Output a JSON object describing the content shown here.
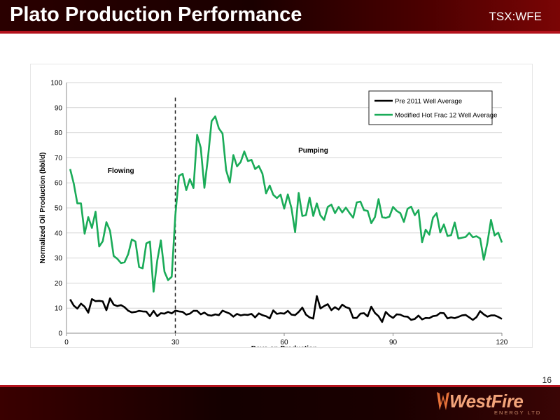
{
  "header": {
    "title": "Plato Production Performance",
    "ticker": "TSX:WFE"
  },
  "page_number": "16",
  "logo": {
    "name": "WestFire",
    "subtitle": "ENERGY LTD"
  },
  "colors": {
    "series_black": "#000000",
    "series_green": "#1aab58",
    "header_accent": "#b3121c"
  },
  "chart_data": {
    "type": "line",
    "title": "",
    "xlabel": "Days on Production",
    "ylabel": "Normalized Oil Production (bbl/d)",
    "xlim": [
      0,
      120
    ],
    "ylim": [
      0,
      100
    ],
    "xticks": [
      0,
      30,
      60,
      90,
      120
    ],
    "yticks": [
      0,
      10,
      20,
      30,
      40,
      50,
      60,
      70,
      80,
      90,
      100
    ],
    "grid": "horizontal",
    "legend_position": "top-right",
    "annotations": [
      {
        "text": "Flowing",
        "x": 15,
        "y": 64
      },
      {
        "text": "Pumping",
        "x": 68,
        "y": 72
      }
    ],
    "divider_day": 30,
    "x": [
      1,
      2,
      3,
      4,
      5,
      6,
      7,
      8,
      9,
      10,
      11,
      12,
      13,
      14,
      15,
      16,
      17,
      18,
      19,
      20,
      21,
      22,
      23,
      24,
      25,
      26,
      27,
      28,
      29,
      30,
      31,
      32,
      33,
      34,
      35,
      36,
      37,
      38,
      39,
      40,
      41,
      42,
      43,
      44,
      45,
      46,
      47,
      48,
      49,
      50,
      51,
      52,
      53,
      54,
      55,
      56,
      57,
      58,
      59,
      60,
      61,
      62,
      63,
      64,
      65,
      66,
      67,
      68,
      69,
      70,
      71,
      72,
      73,
      74,
      75,
      76,
      77,
      78,
      79,
      80,
      81,
      82,
      83,
      84,
      85,
      86,
      87,
      88,
      89,
      90,
      91,
      92,
      93,
      94,
      95,
      96,
      97,
      98,
      99,
      100,
      101,
      102,
      103,
      104,
      105,
      106,
      107,
      108,
      109,
      110,
      111,
      112,
      113,
      114,
      115,
      116,
      117,
      118,
      119,
      120
    ],
    "series": [
      {
        "name": "Pre 2011 Well Average",
        "color": "#000000",
        "values": [
          13.5,
          11,
          9.8,
          11.8,
          10.6,
          8.2,
          13.6,
          12.8,
          12.9,
          12.7,
          9.2,
          13.9,
          11.4,
          10.8,
          11.2,
          10.4,
          9,
          8.3,
          8.5,
          8.9,
          8.7,
          8.6,
          6.8,
          8.9,
          6.8,
          8,
          7.8,
          8.5,
          7.9,
          9,
          8.7,
          8.5,
          7.4,
          7.8,
          8.9,
          8.9,
          7.5,
          8.2,
          7.2,
          7,
          7.5,
          7.2,
          9,
          8.4,
          7.8,
          6.6,
          7.7,
          7.1,
          7.4,
          7.3,
          7.7,
          6.3,
          7.9,
          7.2,
          6.8,
          5.9,
          9.1,
          7.7,
          8,
          7.8,
          8.9,
          7.4,
          7.2,
          8.5,
          10.2,
          7.4,
          6.3,
          5.8,
          14.8,
          9.9,
          10.8,
          11.6,
          9.2,
          10.4,
          9.4,
          11.4,
          10.4,
          9.9,
          6.1,
          6.1,
          7.8,
          8,
          6.7,
          10.6,
          8.1,
          6.8,
          4.5,
          8.5,
          7,
          6.1,
          7.5,
          7.4,
          6.7,
          6.6,
          5.3,
          5.7,
          7,
          5.5,
          6.1,
          6,
          6.8,
          7,
          8.1,
          8,
          5.9,
          6.3,
          6,
          6.5,
          7.1,
          7.3,
          6.3,
          5.3,
          6.4,
          8.8,
          7.5,
          6.6,
          7.1,
          7.1,
          6.5,
          5.7
        ]
      },
      {
        "name": "Modified Hot Frac 12 Well Average",
        "color": "#1aab58",
        "values": [
          65.5,
          59.7,
          51.8,
          51.8,
          39.7,
          46.3,
          42,
          48.5,
          34.6,
          36.7,
          44.3,
          40.9,
          30.8,
          29.7,
          28,
          28.3,
          31.5,
          37.4,
          36.6,
          26.4,
          25.9,
          35.8,
          36.6,
          16.6,
          28.9,
          37,
          24.5,
          21.2,
          22.5,
          47.1,
          62.8,
          63.6,
          57.1,
          61.5,
          57.9,
          79.2,
          74,
          58,
          70.3,
          84.6,
          86.5,
          81.7,
          79.7,
          65,
          60.1,
          71.1,
          66.6,
          68.3,
          72.5,
          68.7,
          69.2,
          65.5,
          66.7,
          63.7,
          55.8,
          58.9,
          55.2,
          53.9,
          55.3,
          49.7,
          55.4,
          49.9,
          40.3,
          56,
          46.8,
          47.1,
          54.1,
          46.8,
          51.8,
          47,
          45.2,
          50.4,
          51.3,
          47.9,
          50.4,
          48.2,
          50.1,
          48,
          46.1,
          52.2,
          52.5,
          49.1,
          48.8,
          43.9,
          46.3,
          53.5,
          46.3,
          46,
          46.5,
          50.4,
          48.8,
          47.9,
          44.4,
          49.6,
          50.5,
          47.1,
          49.1,
          36.3,
          41.3,
          39.3,
          46.1,
          47.9,
          40.2,
          43.4,
          38.8,
          39.1,
          44.2,
          37.8,
          38.1,
          38.4,
          40,
          38.3,
          38.7,
          37.8,
          29.3,
          36.1,
          45.2,
          39,
          40.1,
          36.2
        ]
      }
    ]
  }
}
